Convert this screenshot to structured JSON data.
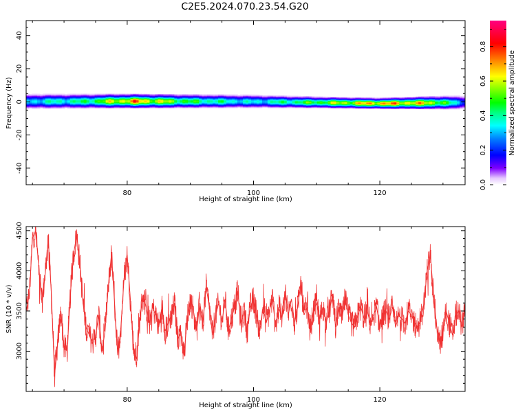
{
  "title": "C2E5.2024.070.23.54.G20",
  "chart_data": [
    {
      "type": "heatmap",
      "xlabel": "Height of straight line (km)",
      "ylabel": "Frequency (Hz)",
      "xlim": [
        64,
        133.5
      ],
      "ylim": [
        -50,
        49
      ],
      "x_ticks": [
        80,
        100,
        120
      ],
      "y_ticks": [
        40,
        20,
        0,
        -20,
        -40
      ],
      "band": {
        "center_hz": [
          [
            64,
            0.4
          ],
          [
            80,
            0.6
          ],
          [
            100,
            0.4
          ],
          [
            110,
            -0.2
          ],
          [
            120,
            -0.8
          ],
          [
            133.5,
            -0.2
          ]
        ],
        "half_width_hz": [
          [
            64,
            4.5
          ],
          [
            80,
            4.2
          ],
          [
            100,
            4.0
          ],
          [
            110,
            3.4
          ],
          [
            120,
            3.2
          ],
          [
            133.5,
            4.2
          ]
        ],
        "peak_amplitude": [
          [
            64,
            0.4
          ],
          [
            73,
            0.5
          ],
          [
            81,
            0.85
          ],
          [
            90,
            0.55
          ],
          [
            100,
            0.4
          ],
          [
            110,
            0.6
          ],
          [
            120,
            0.85
          ],
          [
            128,
            0.75
          ],
          [
            133.5,
            0.3
          ]
        ]
      },
      "colorbar": {
        "label": "Normalized spectral amplitude",
        "range": [
          0,
          0.95
        ],
        "ticks": [
          0.0,
          0.2,
          0.4,
          0.6,
          0.8
        ]
      }
    },
    {
      "type": "line",
      "xlabel": "Height of straight line (km)",
      "ylabel": "SNR (10 * v/v)",
      "xlim": [
        64,
        133.5
      ],
      "ylim": [
        2500,
        4550
      ],
      "x_ticks": [
        80,
        100,
        120
      ],
      "y_ticks": [
        3000,
        3500,
        4000,
        4500
      ],
      "series": [
        {
          "color": "#f03232",
          "x": [
            64,
            64.5,
            65,
            65.5,
            66,
            66.5,
            67,
            67.5,
            68,
            68.5,
            69,
            69.5,
            70,
            70.5,
            71,
            71.5,
            72,
            72.5,
            73,
            73.5,
            74,
            74.5,
            75,
            75.5,
            76,
            76.5,
            77,
            77.5,
            78,
            78.5,
            79,
            79.5,
            80,
            80.5,
            81,
            81.5,
            82,
            82.5,
            83,
            83.5,
            84,
            84.5,
            85,
            85.5,
            86,
            86.5,
            87,
            87.5,
            88,
            88.5,
            89,
            89.5,
            90,
            90.5,
            91,
            91.5,
            92,
            92.5,
            93,
            93.5,
            94,
            94.5,
            95,
            95.5,
            96,
            96.5,
            97,
            97.5,
            98,
            98.5,
            99,
            99.5,
            100,
            100.5,
            101,
            101.5,
            102,
            102.5,
            103,
            103.5,
            104,
            104.5,
            105,
            105.5,
            106,
            106.5,
            107,
            107.5,
            108,
            108.5,
            109,
            109.5,
            110,
            110.5,
            111,
            111.5,
            112,
            112.5,
            113,
            113.5,
            114,
            114.5,
            115,
            115.5,
            116,
            116.5,
            117,
            117.5,
            118,
            118.5,
            119,
            119.5,
            120,
            120.5,
            121,
            121.5,
            122,
            122.5,
            123,
            123.5,
            124,
            124.5,
            125,
            125.5,
            126,
            126.5,
            127,
            127.5,
            128,
            128.5,
            129,
            129.5,
            130,
            130.5,
            131,
            131.5,
            132,
            132.5,
            133,
            133.5
          ],
          "y": [
            3500,
            3700,
            4400,
            4500,
            4050,
            3600,
            3950,
            4400,
            3700,
            2700,
            3100,
            3500,
            3050,
            3000,
            3700,
            4200,
            4450,
            4100,
            3600,
            3300,
            3200,
            3100,
            3200,
            3450,
            3000,
            3250,
            3800,
            4200,
            3600,
            2950,
            3300,
            3900,
            4200,
            3650,
            3050,
            2900,
            3400,
            3700,
            3550,
            3350,
            3550,
            3450,
            3300,
            3550,
            3250,
            3350,
            3450,
            3600,
            3150,
            3250,
            2950,
            3400,
            3650,
            3500,
            3250,
            3600,
            3350,
            3800,
            3550,
            3200,
            3450,
            3600,
            3350,
            3650,
            3250,
            3400,
            3550,
            3750,
            3350,
            3500,
            3250,
            3550,
            3650,
            3450,
            3250,
            3550,
            3350,
            3500,
            3650,
            3300,
            3550,
            3400,
            3750,
            3450,
            3650,
            3350,
            3550,
            3850,
            3450,
            3550,
            3250,
            3500,
            3600,
            3400,
            3550,
            3350,
            3500,
            3700,
            3300,
            3550,
            3400,
            3650,
            3450,
            3350,
            3300,
            3450,
            3550,
            3400,
            3500,
            3350,
            3450,
            3550,
            3300,
            3450,
            3500,
            3400,
            3550,
            3300,
            3450,
            3400,
            3350,
            3500,
            3450,
            3350,
            3300,
            3400,
            3600,
            4000,
            4200,
            3700,
            3300,
            3100,
            3250,
            3500,
            3350,
            3200,
            3450,
            3500,
            3300,
            3600
          ]
        }
      ]
    }
  ]
}
